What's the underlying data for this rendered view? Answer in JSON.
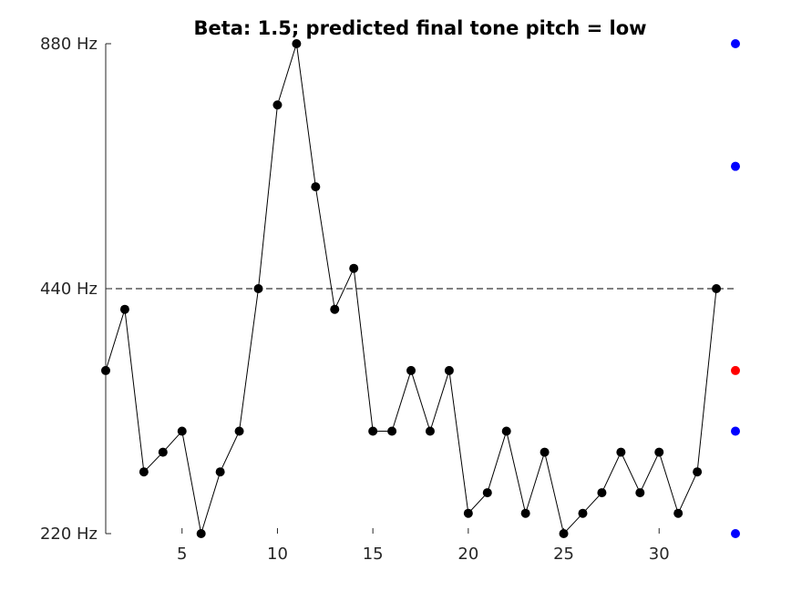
{
  "chart_data": {
    "type": "line",
    "title": "Beta: 1.5; predicted final tone pitch = low",
    "xlabel": "",
    "ylabel": "",
    "xlim": [
      1,
      34
    ],
    "y_scale": "log2",
    "ylim": [
      220,
      880
    ],
    "x_ticks": [
      5,
      10,
      15,
      20,
      25,
      30
    ],
    "y_ticks": [
      {
        "value": 220,
        "label": "220 Hz"
      },
      {
        "value": 440,
        "label": "440 Hz"
      },
      {
        "value": 880,
        "label": "880 Hz"
      }
    ],
    "reference_line": {
      "y": 440,
      "style": "dashed"
    },
    "series": [
      {
        "color": "#000000",
        "x": [
          1,
          2,
          3,
          4,
          5,
          6,
          7,
          8,
          9,
          10,
          11,
          12,
          13,
          14,
          15,
          16,
          17,
          18,
          19,
          20,
          21,
          22,
          23,
          24,
          25,
          26,
          27,
          28,
          29,
          30,
          31,
          32,
          33
        ],
        "y": [
          349,
          415,
          262,
          277,
          294,
          220,
          262,
          294,
          440,
          740,
          880,
          587,
          415,
          466,
          294,
          294,
          349,
          294,
          349,
          233,
          247,
          294,
          233,
          277,
          220,
          233,
          247,
          277,
          247,
          277,
          233,
          262,
          440
        ]
      }
    ],
    "candidate_tones": [
      {
        "x": 34,
        "y": 880,
        "color": "#0000ff"
      },
      {
        "x": 34,
        "y": 622,
        "color": "#0000ff"
      },
      {
        "x": 34,
        "y": 349,
        "color": "#ff0000"
      },
      {
        "x": 34,
        "y": 294,
        "color": "#0000ff"
      },
      {
        "x": 34,
        "y": 220,
        "color": "#0000ff"
      }
    ],
    "grid": false,
    "legend": "none"
  }
}
